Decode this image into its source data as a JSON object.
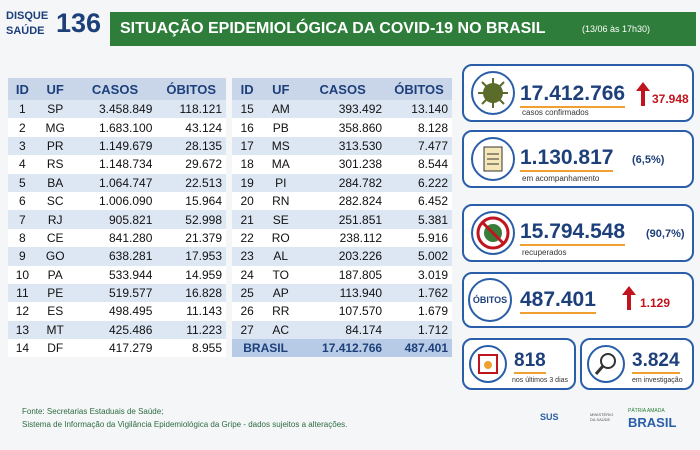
{
  "header": {
    "logo_top": "DISQUE",
    "logo_bottom": "SAÚDE",
    "logo_number": "136",
    "title": "SITUAÇÃO EPIDEMIOLÓGICA DA COVID-19 NO BRASIL",
    "date": "(13/06 às 17h30)"
  },
  "table_left": {
    "columns": [
      "ID",
      "UF",
      "CASOS",
      "ÓBITOS"
    ],
    "rows": [
      [
        "1",
        "SP",
        "3.458.849",
        "118.121"
      ],
      [
        "2",
        "MG",
        "1.683.100",
        "43.124"
      ],
      [
        "3",
        "PR",
        "1.149.679",
        "28.135"
      ],
      [
        "4",
        "RS",
        "1.148.734",
        "29.672"
      ],
      [
        "5",
        "BA",
        "1.064.747",
        "22.513"
      ],
      [
        "6",
        "SC",
        "1.006.090",
        "15.964"
      ],
      [
        "7",
        "RJ",
        "905.821",
        "52.998"
      ],
      [
        "8",
        "CE",
        "841.280",
        "21.379"
      ],
      [
        "9",
        "GO",
        "638.281",
        "17.953"
      ],
      [
        "10",
        "PA",
        "533.944",
        "14.959"
      ],
      [
        "11",
        "PE",
        "519.577",
        "16.828"
      ],
      [
        "12",
        "ES",
        "498.495",
        "11.143"
      ],
      [
        "13",
        "MT",
        "425.486",
        "11.223"
      ],
      [
        "14",
        "DF",
        "417.279",
        "8.955"
      ]
    ]
  },
  "table_right": {
    "columns": [
      "ID",
      "UF",
      "CASOS",
      "ÓBITOS"
    ],
    "rows": [
      [
        "15",
        "AM",
        "393.492",
        "13.140"
      ],
      [
        "16",
        "PB",
        "358.860",
        "8.128"
      ],
      [
        "17",
        "MS",
        "313.530",
        "7.477"
      ],
      [
        "18",
        "MA",
        "301.238",
        "8.544"
      ],
      [
        "19",
        "PI",
        "284.782",
        "6.222"
      ],
      [
        "20",
        "RN",
        "282.824",
        "6.452"
      ],
      [
        "21",
        "SE",
        "251.851",
        "5.381"
      ],
      [
        "22",
        "RO",
        "238.112",
        "5.916"
      ],
      [
        "23",
        "AL",
        "203.226",
        "5.002"
      ],
      [
        "24",
        "TO",
        "187.805",
        "3.019"
      ],
      [
        "25",
        "AP",
        "113.940",
        "1.762"
      ],
      [
        "26",
        "RR",
        "107.570",
        "1.679"
      ],
      [
        "27",
        "AC",
        "84.174",
        "1.712"
      ]
    ],
    "total": [
      "BRASIL",
      "17.412.766",
      "487.401"
    ]
  },
  "cards": [
    {
      "value": "17.412.766",
      "change": "37.948",
      "label": "casos confirmados"
    },
    {
      "value": "1.130.817",
      "percent": "(6,5%)",
      "label": "em acompanhamento"
    },
    {
      "value": "15.794.548",
      "percent": "(90,7%)",
      "label": "recuperados"
    },
    {
      "title": "ÓBITOS",
      "value": "487.401",
      "change": "1.129"
    }
  ],
  "small_cards": [
    {
      "value": "818",
      "label": "nos últimos 3 dias"
    },
    {
      "value": "3.824",
      "label": "em investigação"
    }
  ],
  "footer": {
    "sources": [
      "Fonte: Secretarias Estaduais de Saúde;",
      "Sistema de Informação da Vigilância Epidemiológica da Gripe - dados sujeitos a alterações."
    ],
    "logos": [
      "SUS",
      "MINISTÉRIO DA SAÚDE",
      "PÁTRIA AMADA",
      "BRASIL"
    ]
  }
}
